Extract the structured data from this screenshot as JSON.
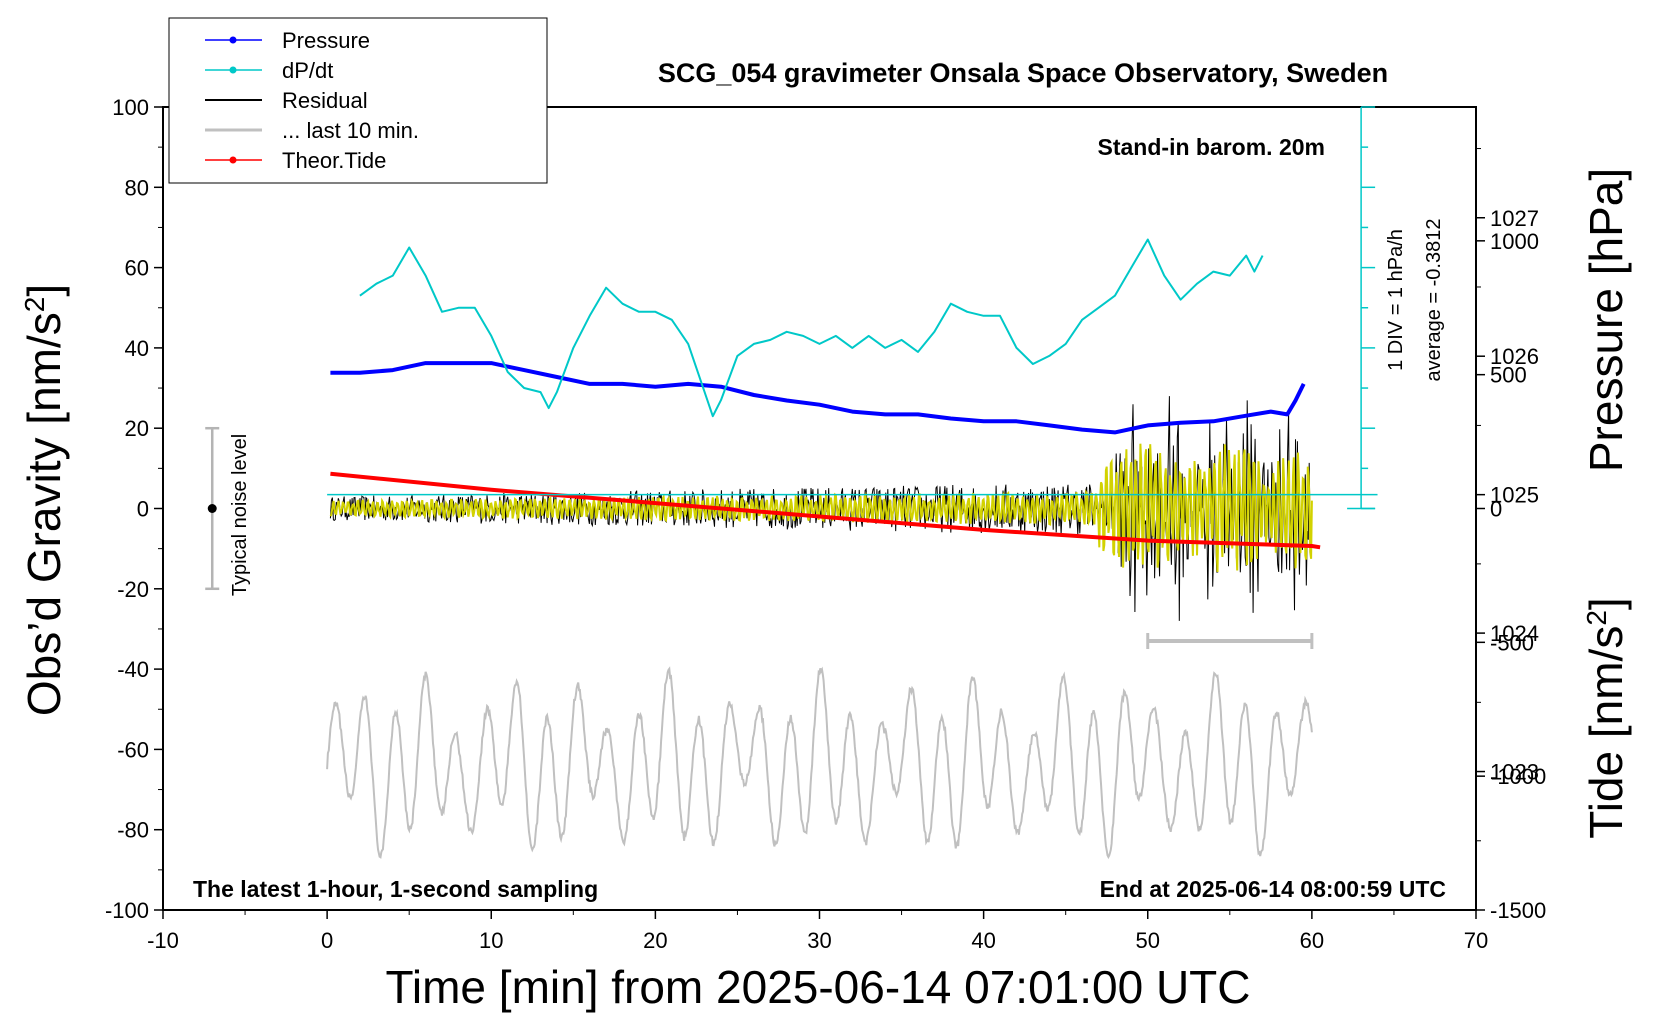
{
  "chart_data": {
    "type": "line",
    "title": "SCG_054 gravimeter Onsala Space Observatory, Sweden",
    "subtitle_right": "Stand-in barom. 20m",
    "xlabel": "Time [min] from 2025-06-14 07:01:00 UTC",
    "ylabel_left": "Obs’d Gravity [nm/s",
    "ylabel_left_sup": "2",
    "ylabel_left_close": "]",
    "ylabel_right_pressure": "Pressure [hPa]",
    "ylabel_right_tide": "Tide [nm/s",
    "ylabel_right_tide_sup": "2",
    "ylabel_right_tide_close": "]",
    "xlim": [
      -10,
      70
    ],
    "ylim_gravity": [
      -100,
      100
    ],
    "ylim_pressure": [
      1022,
      1027.8
    ],
    "ylim_tide": [
      -1500,
      1500
    ],
    "x_ticks": [
      -10,
      0,
      10,
      20,
      30,
      40,
      50,
      60,
      70
    ],
    "x_tick_labels": [
      "-10",
      "0",
      "10",
      "20",
      "30",
      "40",
      "50",
      "60",
      "70"
    ],
    "y_ticks_gravity": [
      -100,
      -80,
      -60,
      -40,
      -20,
      0,
      20,
      40,
      60,
      80,
      100
    ],
    "y_tick_labels_gravity": [
      "-100",
      "-80",
      "-60",
      "-40",
      "-20",
      "0",
      "20",
      "40",
      "60",
      "80",
      "100"
    ],
    "y_ticks_pressure": [
      1023,
      1024,
      1025,
      1026,
      1027
    ],
    "y_tick_labels_pressure": [
      "1023",
      "1024",
      "1025",
      "1026",
      "1027"
    ],
    "y_ticks_tide": [
      -1500,
      -1000,
      -500,
      0,
      500,
      1000
    ],
    "y_tick_labels_tide": [
      "-1500",
      "-1000",
      "-500",
      "0",
      "500",
      "1000"
    ],
    "legend": [
      {
        "label": "Pressure",
        "color": "#0000ff",
        "marker": true
      },
      {
        "label": "dP/dt",
        "color": "#00c8c8",
        "marker": true
      },
      {
        "label": "Residual",
        "color": "#000000",
        "marker": false
      },
      {
        "label": "... last 10 min.",
        "color": "#c0c0c0",
        "marker": false
      },
      {
        "label": "Theor.Tide",
        "color": "#ff0000",
        "marker": true
      }
    ],
    "legend_position": "top-left",
    "annotations": {
      "bottom_left": "The latest 1-hour, 1-second sampling",
      "bottom_right": "End at 2025-06-14 08:00:59 UTC",
      "noise_label": "Typical noise level",
      "div_label": "1 DIV = 1 hPa/h",
      "average_label": "average = -0.3812"
    },
    "noise_bar": {
      "x": -7,
      "center": 0,
      "half_range": 20
    },
    "last10_range": [
      50,
      60
    ],
    "dpdt_zero_line_pressure": 1025,
    "series": [
      {
        "name": "Pressure",
        "axis": "pressure",
        "color": "#0000ff",
        "points": [
          [
            0.2,
            1025.88
          ],
          [
            2,
            1025.88
          ],
          [
            4,
            1025.9
          ],
          [
            6,
            1025.95
          ],
          [
            8,
            1025.95
          ],
          [
            10,
            1025.95
          ],
          [
            12,
            1025.9
          ],
          [
            14,
            1025.85
          ],
          [
            16,
            1025.8
          ],
          [
            18,
            1025.8
          ],
          [
            20,
            1025.78
          ],
          [
            22,
            1025.8
          ],
          [
            24,
            1025.78
          ],
          [
            26,
            1025.72
          ],
          [
            28,
            1025.68
          ],
          [
            30,
            1025.65
          ],
          [
            32,
            1025.6
          ],
          [
            34,
            1025.58
          ],
          [
            36,
            1025.58
          ],
          [
            38,
            1025.55
          ],
          [
            40,
            1025.53
          ],
          [
            42,
            1025.53
          ],
          [
            44,
            1025.5
          ],
          [
            46,
            1025.47
          ],
          [
            48,
            1025.45
          ],
          [
            50,
            1025.5
          ],
          [
            52,
            1025.52
          ],
          [
            54,
            1025.53
          ],
          [
            56,
            1025.57
          ],
          [
            57.5,
            1025.6
          ],
          [
            58.5,
            1025.58
          ],
          [
            59,
            1025.68
          ],
          [
            59.5,
            1025.8
          ]
        ]
      },
      {
        "name": "dP/dt",
        "axis": "gravity",
        "color": "#00c8c8",
        "points": [
          [
            2,
            53
          ],
          [
            3,
            56
          ],
          [
            4,
            58
          ],
          [
            5,
            65
          ],
          [
            6,
            58
          ],
          [
            7,
            49
          ],
          [
            8,
            50
          ],
          [
            9,
            50
          ],
          [
            10,
            43
          ],
          [
            11,
            34
          ],
          [
            12,
            30
          ],
          [
            13,
            29
          ],
          [
            13.5,
            25
          ],
          [
            14,
            29
          ],
          [
            15,
            40
          ],
          [
            16,
            48
          ],
          [
            17,
            55
          ],
          [
            18,
            51
          ],
          [
            19,
            49
          ],
          [
            20,
            49
          ],
          [
            21,
            47
          ],
          [
            22,
            41
          ],
          [
            23,
            29
          ],
          [
            23.5,
            23
          ],
          [
            24,
            27
          ],
          [
            25,
            38
          ],
          [
            26,
            41
          ],
          [
            27,
            42
          ],
          [
            28,
            44
          ],
          [
            29,
            43
          ],
          [
            30,
            41
          ],
          [
            31,
            43
          ],
          [
            32,
            40
          ],
          [
            33,
            43
          ],
          [
            34,
            40
          ],
          [
            35,
            42
          ],
          [
            36,
            39
          ],
          [
            37,
            44
          ],
          [
            38,
            51
          ],
          [
            39,
            49
          ],
          [
            40,
            48
          ],
          [
            41,
            48
          ],
          [
            42,
            40
          ],
          [
            43,
            36
          ],
          [
            44,
            38
          ],
          [
            45,
            41
          ],
          [
            46,
            47
          ],
          [
            47,
            50
          ],
          [
            48,
            53
          ],
          [
            49,
            60
          ],
          [
            50,
            67
          ],
          [
            51,
            58
          ],
          [
            52,
            52
          ],
          [
            53,
            56
          ],
          [
            54,
            59
          ],
          [
            55,
            58
          ],
          [
            56,
            63
          ],
          [
            56.5,
            59
          ],
          [
            57,
            63
          ]
        ]
      },
      {
        "name": "Theor.Tide",
        "axis": "tide",
        "color": "#ff0000",
        "points": [
          [
            0.2,
            130
          ],
          [
            10,
            70
          ],
          [
            20,
            20
          ],
          [
            30,
            -30
          ],
          [
            40,
            -80
          ],
          [
            50,
            -120
          ],
          [
            60,
            -140
          ],
          [
            60.5,
            -145
          ]
        ]
      }
    ]
  }
}
